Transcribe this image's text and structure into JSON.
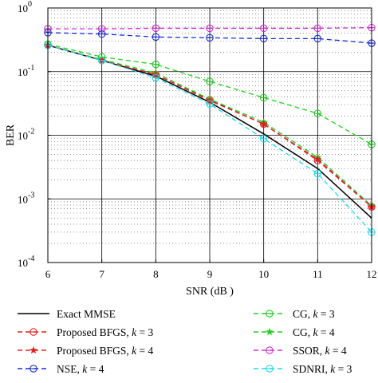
{
  "chart_data": {
    "type": "line",
    "title": "",
    "xlabel": "SNR (dB )",
    "ylabel": "BER",
    "x_range": [
      6,
      12
    ],
    "y_range": [
      0.0001,
      1
    ],
    "y_scale": "log",
    "grid": true,
    "x_ticks": [
      "6",
      "7",
      "8",
      "9",
      "10",
      "11",
      "12"
    ],
    "y_ticks": [
      {
        "value": 1,
        "base": "10",
        "exp": "0"
      },
      {
        "value": 0.1,
        "base": "10",
        "exp": "-1"
      },
      {
        "value": 0.01,
        "base": "10",
        "exp": "-2"
      },
      {
        "value": 0.001,
        "base": "10",
        "exp": "-3"
      },
      {
        "value": 0.0001,
        "base": "10",
        "exp": "-4"
      }
    ],
    "legend_placement": "below",
    "series": [
      {
        "name": "Exact MMSE",
        "color": "#000000",
        "dash": "solid",
        "marker": "none",
        "x": [
          6,
          7,
          8,
          9,
          10,
          11,
          12
        ],
        "y": [
          0.26,
          0.15,
          0.085,
          0.033,
          0.0105,
          0.003,
          0.0005
        ]
      },
      {
        "name": "CG, k = 3",
        "color": "#22cc22",
        "dash": "dashed",
        "marker": "circle",
        "x": [
          6,
          7,
          8,
          9,
          10,
          11,
          12
        ],
        "y": [
          0.27,
          0.17,
          0.13,
          0.07,
          0.039,
          0.022,
          0.0072
        ]
      },
      {
        "name": "Proposed BFGS, k = 3",
        "color": "#e02020",
        "dash": "dashed",
        "marker": "circle",
        "x": [
          6,
          7,
          8,
          9,
          10,
          11,
          12
        ],
        "y": [
          0.26,
          0.15,
          0.09,
          0.036,
          0.015,
          0.004,
          0.00075
        ]
      },
      {
        "name": "CG, k = 4",
        "color": "#22cc22",
        "dash": "dashed",
        "marker": "star",
        "x": [
          6,
          7,
          8,
          9,
          10,
          11,
          12
        ],
        "y": [
          0.26,
          0.155,
          0.095,
          0.037,
          0.016,
          0.0045,
          0.00078
        ]
      },
      {
        "name": "Proposed BFGS, k = 4",
        "color": "#e02020",
        "dash": "dashed",
        "marker": "star",
        "x": [
          6,
          7,
          8,
          9,
          10,
          11,
          12
        ],
        "y": [
          0.26,
          0.15,
          0.09,
          0.035,
          0.015,
          0.0042,
          0.00075
        ]
      },
      {
        "name": "SSOR, k = 4",
        "color": "#cc33cc",
        "dash": "dashed",
        "marker": "circle",
        "x": [
          6,
          7,
          8,
          9,
          10,
          11,
          12
        ],
        "y": [
          0.47,
          0.47,
          0.48,
          0.48,
          0.48,
          0.48,
          0.49
        ]
      },
      {
        "name": "NSE, k = 4",
        "color": "#1a2fd0",
        "dash": "dashed",
        "marker": "circle",
        "x": [
          6,
          7,
          8,
          9,
          10,
          11,
          12
        ],
        "y": [
          0.41,
          0.39,
          0.35,
          0.34,
          0.33,
          0.33,
          0.28
        ]
      },
      {
        "name": "SDNRI, k = 3",
        "color": "#22d8e8",
        "dash": "dashed",
        "marker": "circle",
        "x": [
          6,
          7,
          8,
          9,
          10,
          11,
          12
        ],
        "y": [
          0.26,
          0.15,
          0.08,
          0.031,
          0.0088,
          0.0025,
          0.0003
        ]
      }
    ],
    "legend": [
      {
        "label_main": "Exact MMSE",
        "label_var": "",
        "label_val": "",
        "color": "#000000",
        "dash": "solid",
        "marker": "none",
        "col": 0,
        "row": 0
      },
      {
        "label_main": "Proposed BFGS, ",
        "label_var": "k",
        "label_val": " = 3",
        "color": "#e02020",
        "dash": "dashed",
        "marker": "circle",
        "col": 0,
        "row": 1
      },
      {
        "label_main": "Proposed BFGS, ",
        "label_var": "k",
        "label_val": " = 4",
        "color": "#e02020",
        "dash": "dashed",
        "marker": "star",
        "col": 0,
        "row": 2
      },
      {
        "label_main": "NSE, ",
        "label_var": "k",
        "label_val": " = 4",
        "color": "#1a2fd0",
        "dash": "dashed",
        "marker": "circle",
        "col": 0,
        "row": 3
      },
      {
        "label_main": "CG, ",
        "label_var": "k",
        "label_val": " = 3",
        "color": "#22cc22",
        "dash": "dashed",
        "marker": "circle",
        "col": 1,
        "row": 0
      },
      {
        "label_main": "CG, ",
        "label_var": "k",
        "label_val": " = 4",
        "color": "#22cc22",
        "dash": "dashed",
        "marker": "star",
        "col": 1,
        "row": 1
      },
      {
        "label_main": "SSOR, ",
        "label_var": "k",
        "label_val": " = 4",
        "color": "#cc33cc",
        "dash": "dashed",
        "marker": "circle",
        "col": 1,
        "row": 2
      },
      {
        "label_main": "SDNRI, ",
        "label_var": "k",
        "label_val": " = 3",
        "color": "#22d8e8",
        "dash": "dashed",
        "marker": "circle",
        "col": 1,
        "row": 3
      }
    ]
  }
}
